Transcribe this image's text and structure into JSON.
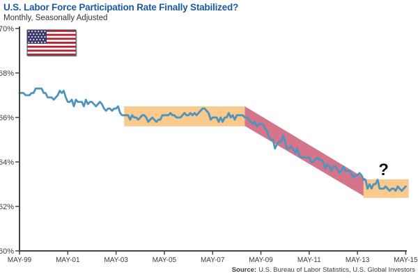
{
  "header": {
    "title": "U.S. Labor Force Participation Rate Finally Stabilized?",
    "subtitle": "Monthly, Seasonally Adjusted",
    "flag_icon": "us-flag"
  },
  "footer": {
    "source_label": "Source:",
    "source_text": "U.S. Bureau of Labor Statistics, U.S. Global Investors"
  },
  "chart_data": {
    "type": "line",
    "title": "U.S. Labor Force Participation Rate Finally Stabilized?",
    "subtitle": "Monthly, Seasonally Adjusted",
    "xlabel": "",
    "ylabel": "",
    "grid": false,
    "legend": false,
    "line_color": "#4d94bd",
    "axis_color": "#454545",
    "text_color": "#3b3b3b",
    "y_axis": {
      "min": 60,
      "max": 70,
      "tick_values": [
        70,
        68,
        66,
        64,
        62,
        60
      ],
      "tick_labels": [
        "70%",
        "68%",
        "66%",
        "64%",
        "62%",
        "60%"
      ]
    },
    "x_axis": {
      "tick_labels": [
        "MAY-99",
        "MAY-01",
        "MAY-03",
        "MAY-05",
        "MAY-07",
        "MAY-09",
        "MAY-11",
        "MAY-13",
        "MAY-15"
      ],
      "tick_month_offsets": [
        0,
        24,
        48,
        72,
        96,
        120,
        144,
        168,
        192
      ]
    },
    "series": [
      {
        "name": "U.S. labor force participation rate",
        "start": "1999-05",
        "frequency": "monthly",
        "unit": "%",
        "values": [
          67.1,
          67.1,
          67.1,
          67.0,
          67.0,
          67.0,
          67.1,
          67.1,
          67.3,
          67.3,
          67.3,
          67.3,
          67.1,
          67.1,
          66.9,
          66.9,
          66.9,
          66.8,
          66.9,
          67.0,
          67.2,
          67.1,
          67.2,
          66.9,
          66.7,
          66.7,
          66.8,
          66.5,
          66.8,
          66.7,
          66.7,
          66.7,
          66.5,
          66.8,
          66.6,
          66.7,
          66.7,
          66.6,
          66.5,
          66.6,
          66.7,
          66.6,
          66.4,
          66.3,
          66.4,
          66.4,
          66.3,
          66.4,
          66.4,
          66.5,
          66.2,
          66.1,
          66.1,
          66.1,
          66.1,
          65.9,
          66.1,
          66.0,
          66.0,
          65.9,
          66.0,
          66.1,
          66.1,
          66.0,
          65.8,
          65.9,
          66.0,
          65.9,
          65.8,
          65.9,
          65.9,
          66.1,
          66.1,
          66.1,
          66.1,
          66.2,
          66.1,
          66.1,
          66.0,
          66.0,
          66.0,
          66.1,
          66.2,
          66.1,
          66.1,
          66.2,
          66.1,
          66.2,
          66.1,
          66.2,
          66.3,
          66.4,
          66.4,
          66.3,
          66.2,
          65.9,
          66.0,
          66.0,
          66.0,
          65.8,
          66.0,
          65.8,
          66.0,
          66.0,
          66.2,
          66.0,
          66.1,
          65.9,
          66.1,
          66.1,
          66.1,
          66.1,
          66.0,
          66.0,
          65.9,
          65.8,
          65.7,
          65.8,
          65.6,
          65.7,
          65.7,
          65.7,
          65.5,
          65.4,
          65.1,
          65.0,
          65.0,
          64.6,
          64.8,
          64.9,
          64.9,
          65.2,
          64.9,
          64.6,
          64.6,
          64.7,
          64.6,
          64.4,
          64.6,
          64.3,
          64.2,
          64.2,
          64.2,
          64.2,
          64.2,
          64.0,
          64.0,
          64.1,
          64.2,
          64.1,
          64.1,
          64.0,
          63.7,
          63.9,
          63.8,
          63.6,
          63.8,
          63.8,
          63.7,
          63.5,
          63.6,
          63.8,
          63.6,
          63.6,
          63.6,
          63.5,
          63.3,
          63.4,
          63.4,
          63.5,
          63.4,
          63.2,
          63.2,
          62.8,
          63.0,
          62.8,
          63.0,
          63.0,
          63.2,
          62.8,
          62.8,
          62.8,
          62.9,
          62.8,
          62.7,
          62.8,
          62.8,
          62.7,
          62.9,
          62.8,
          62.7,
          62.8,
          62.9
        ]
      }
    ],
    "bands": [
      {
        "name": "stable-band-2003-2008",
        "color": "#f9c98d",
        "from_month": 52,
        "to_month": 112,
        "top_start": 66.5,
        "bottom_start": 65.6,
        "top_end": 66.5,
        "bottom_end": 65.6
      },
      {
        "name": "decline-band-2008-2013",
        "color": "#d5758b",
        "from_month": 112,
        "to_month": 172,
        "top_start": 66.5,
        "bottom_start": 65.62,
        "top_end": 63.25,
        "bottom_end": 62.42
      },
      {
        "name": "stabilized-band-2013-2015",
        "color": "#f9c98d",
        "from_month": 171,
        "to_month": 193.5,
        "top_start": 63.22,
        "bottom_start": 62.38,
        "top_end": 63.22,
        "bottom_end": 62.38
      }
    ],
    "annotations": [
      {
        "text": "?",
        "month": 181,
        "value": 63.4,
        "font_size": 24,
        "color": "#111111"
      }
    ]
  }
}
